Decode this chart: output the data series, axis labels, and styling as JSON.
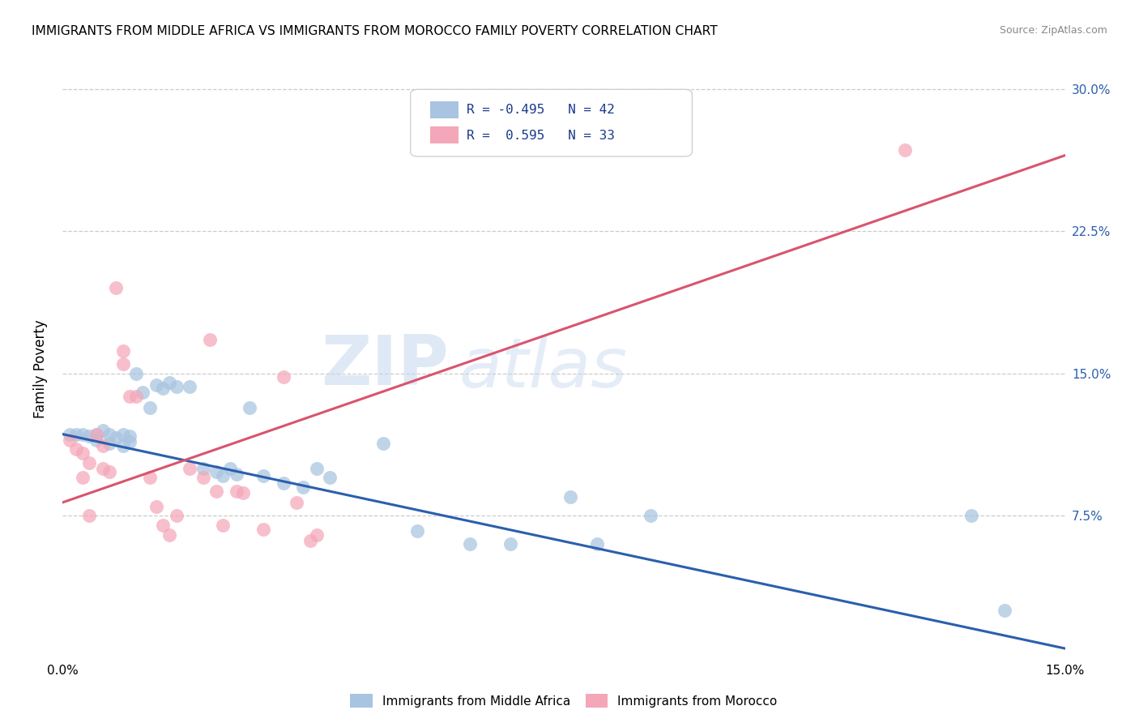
{
  "title": "IMMIGRANTS FROM MIDDLE AFRICA VS IMMIGRANTS FROM MOROCCO FAMILY POVERTY CORRELATION CHART",
  "source": "Source: ZipAtlas.com",
  "ylabel": "Family Poverty",
  "scatter_blue_color": "#a8c4e0",
  "scatter_pink_color": "#f4a7b9",
  "line_blue_color": "#2b5fad",
  "line_pink_color": "#d9546e",
  "legend_text_color": "#1a3a8c",
  "legend_label_bottom1": "Immigrants from Middle Africa",
  "legend_label_bottom2": "Immigrants from Morocco",
  "watermark_zip": "ZIP",
  "watermark_atlas": "atlas",
  "xlim": [
    0.0,
    0.15
  ],
  "ylim": [
    0.0,
    0.305
  ],
  "y_ticks": [
    0.075,
    0.15,
    0.225,
    0.3
  ],
  "y_tick_labels": [
    "7.5%",
    "15.0%",
    "22.5%",
    "30.0%"
  ],
  "x_ticks": [
    0.0,
    0.025,
    0.05,
    0.075,
    0.1,
    0.125,
    0.15
  ],
  "x_tick_labels": [
    "0.0%",
    "",
    "",
    "",
    "",
    "",
    "15.0%"
  ],
  "blue_points": [
    [
      0.001,
      0.118
    ],
    [
      0.002,
      0.118
    ],
    [
      0.003,
      0.118
    ],
    [
      0.004,
      0.117
    ],
    [
      0.005,
      0.118
    ],
    [
      0.005,
      0.115
    ],
    [
      0.006,
      0.12
    ],
    [
      0.007,
      0.113
    ],
    [
      0.007,
      0.118
    ],
    [
      0.008,
      0.116
    ],
    [
      0.009,
      0.118
    ],
    [
      0.009,
      0.112
    ],
    [
      0.01,
      0.117
    ],
    [
      0.01,
      0.114
    ],
    [
      0.011,
      0.15
    ],
    [
      0.012,
      0.14
    ],
    [
      0.013,
      0.132
    ],
    [
      0.014,
      0.144
    ],
    [
      0.015,
      0.142
    ],
    [
      0.016,
      0.145
    ],
    [
      0.017,
      0.143
    ],
    [
      0.019,
      0.143
    ],
    [
      0.021,
      0.1
    ],
    [
      0.023,
      0.098
    ],
    [
      0.024,
      0.096
    ],
    [
      0.025,
      0.1
    ],
    [
      0.026,
      0.097
    ],
    [
      0.028,
      0.132
    ],
    [
      0.03,
      0.096
    ],
    [
      0.033,
      0.092
    ],
    [
      0.036,
      0.09
    ],
    [
      0.038,
      0.1
    ],
    [
      0.04,
      0.095
    ],
    [
      0.048,
      0.113
    ],
    [
      0.053,
      0.067
    ],
    [
      0.061,
      0.06
    ],
    [
      0.067,
      0.06
    ],
    [
      0.076,
      0.085
    ],
    [
      0.08,
      0.06
    ],
    [
      0.088,
      0.075
    ],
    [
      0.136,
      0.075
    ],
    [
      0.141,
      0.025
    ]
  ],
  "pink_points": [
    [
      0.001,
      0.115
    ],
    [
      0.002,
      0.11
    ],
    [
      0.003,
      0.108
    ],
    [
      0.003,
      0.095
    ],
    [
      0.004,
      0.103
    ],
    [
      0.004,
      0.075
    ],
    [
      0.005,
      0.118
    ],
    [
      0.006,
      0.112
    ],
    [
      0.006,
      0.1
    ],
    [
      0.007,
      0.098
    ],
    [
      0.008,
      0.195
    ],
    [
      0.009,
      0.162
    ],
    [
      0.009,
      0.155
    ],
    [
      0.01,
      0.138
    ],
    [
      0.011,
      0.138
    ],
    [
      0.013,
      0.095
    ],
    [
      0.014,
      0.08
    ],
    [
      0.015,
      0.07
    ],
    [
      0.016,
      0.065
    ],
    [
      0.017,
      0.075
    ],
    [
      0.019,
      0.1
    ],
    [
      0.021,
      0.095
    ],
    [
      0.022,
      0.168
    ],
    [
      0.023,
      0.088
    ],
    [
      0.024,
      0.07
    ],
    [
      0.026,
      0.088
    ],
    [
      0.027,
      0.087
    ],
    [
      0.03,
      0.068
    ],
    [
      0.033,
      0.148
    ],
    [
      0.035,
      0.082
    ],
    [
      0.037,
      0.062
    ],
    [
      0.038,
      0.065
    ],
    [
      0.126,
      0.268
    ]
  ],
  "blue_line_x": [
    0.0,
    0.15
  ],
  "blue_line_y": [
    0.118,
    0.005
  ],
  "pink_line_x": [
    0.0,
    0.15
  ],
  "pink_line_y": [
    0.082,
    0.265
  ]
}
